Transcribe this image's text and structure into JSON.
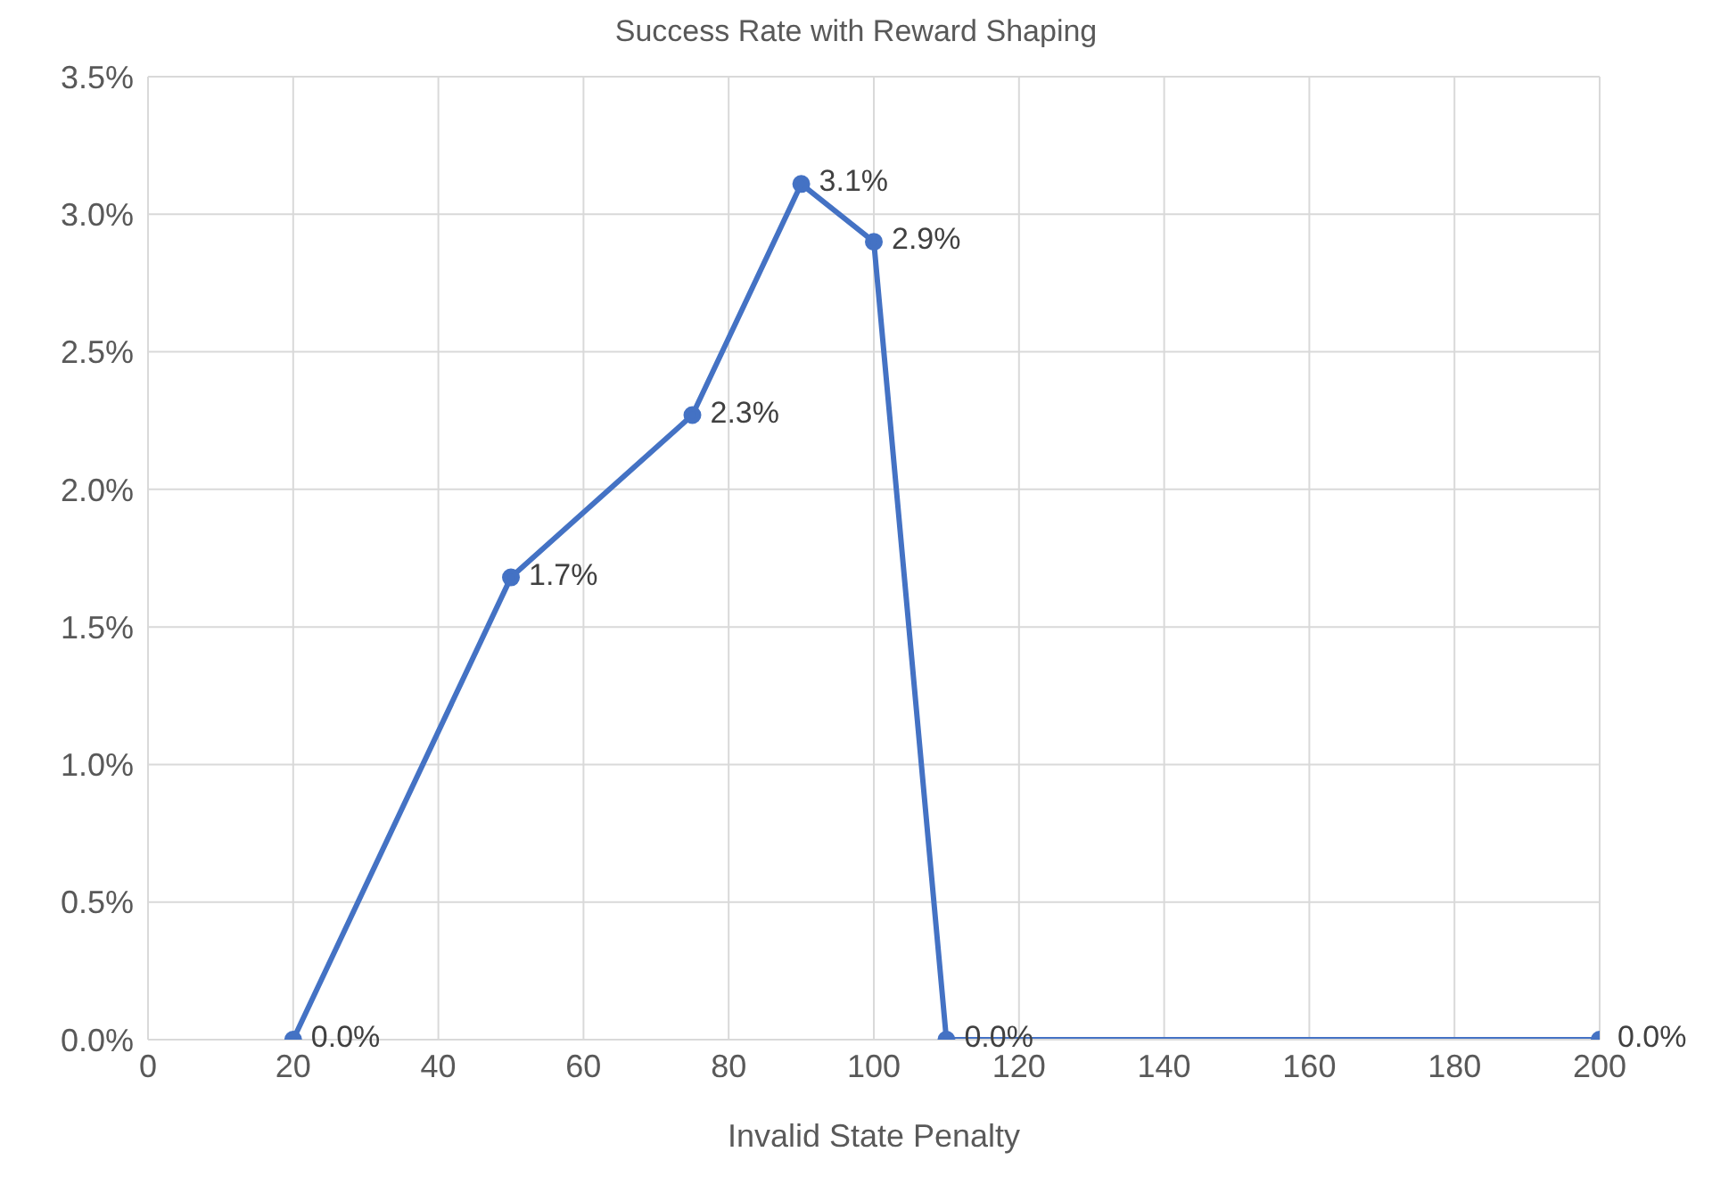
{
  "chart_data": {
    "type": "line",
    "title": "Success Rate with Reward Shaping",
    "xlabel": "Invalid State Penalty",
    "series": [
      {
        "type": "line",
        "color": "#4472c4",
        "x": [
          20,
          50,
          75,
          90,
          100,
          110,
          200
        ],
        "values": [
          0,
          1.68,
          2.27,
          3.11,
          2.9,
          0,
          0
        ],
        "value_labels": [
          "0.0%",
          "1.7%",
          "2.3%",
          "3.1%",
          "2.9%",
          "0.0%",
          "0.0%"
        ]
      }
    ],
    "xlim": [
      0,
      200
    ],
    "xticks": [
      0,
      20,
      40,
      60,
      80,
      100,
      120,
      140,
      160,
      180,
      200
    ],
    "ylim": [
      0,
      3.5
    ],
    "yticks": [
      {
        "value": 0,
        "label": "0.0%"
      },
      {
        "value": 0.5,
        "label": "0.5%"
      },
      {
        "value": 1,
        "label": "1.0%"
      },
      {
        "value": 1.5,
        "label": "1.5%"
      },
      {
        "value": 2,
        "label": "2.0%"
      },
      {
        "value": 2.5,
        "label": "2.5%"
      },
      {
        "value": 3,
        "label": "3.0%"
      },
      {
        "value": 3.5,
        "label": "3.5%"
      }
    ],
    "grid": true,
    "marker": "circle",
    "line_style": "solid",
    "legend": false
  }
}
